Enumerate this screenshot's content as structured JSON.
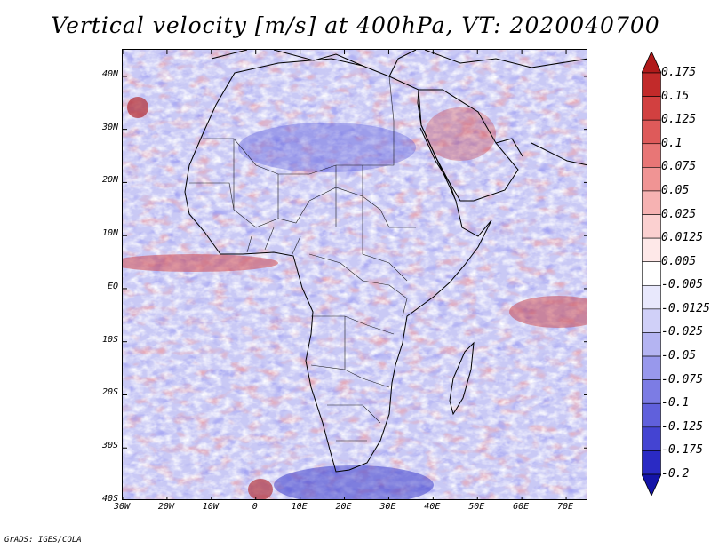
{
  "title": "Vertical velocity [m/s] at 400hPa, VT: 2020040700",
  "credit": "GrADS: IGES/COLA",
  "map": {
    "region": "Africa",
    "lon_range": [
      -30,
      75
    ],
    "lat_range": [
      -40,
      45
    ],
    "lat_labels": [
      "40N",
      "30N",
      "20N",
      "10N",
      "EQ",
      "10S",
      "20S",
      "30S",
      "40S"
    ],
    "lat_values": [
      40,
      30,
      20,
      10,
      0,
      -10,
      -20,
      -30,
      -40
    ],
    "lon_labels": [
      "30W",
      "20W",
      "10W",
      "0",
      "10E",
      "20E",
      "30E",
      "40E",
      "50E",
      "60E",
      "70E"
    ],
    "lon_values": [
      -30,
      -20,
      -10,
      0,
      10,
      20,
      30,
      40,
      50,
      60,
      70
    ],
    "boundary_color": "#000000"
  },
  "colorbar": {
    "labels": [
      "0.175",
      "0.15",
      "0.125",
      "0.1",
      "0.075",
      "0.05",
      "0.025",
      "0.0125",
      "0.005",
      "-0.005",
      "-0.0125",
      "-0.025",
      "-0.05",
      "-0.075",
      "-0.1",
      "-0.125",
      "-0.175",
      "-0.2"
    ],
    "colors": [
      "#b01a1a",
      "#c22a2a",
      "#d24040",
      "#de5a5a",
      "#e87676",
      "#f09494",
      "#f6b2b2",
      "#fbd0d0",
      "#fee8e8",
      "#ffffff",
      "#e8e8fc",
      "#d0d0f8",
      "#b4b4f2",
      "#9898ec",
      "#7c7ce4",
      "#6060dc",
      "#4444d2",
      "#2a2ac4",
      "#1414a8"
    ]
  }
}
